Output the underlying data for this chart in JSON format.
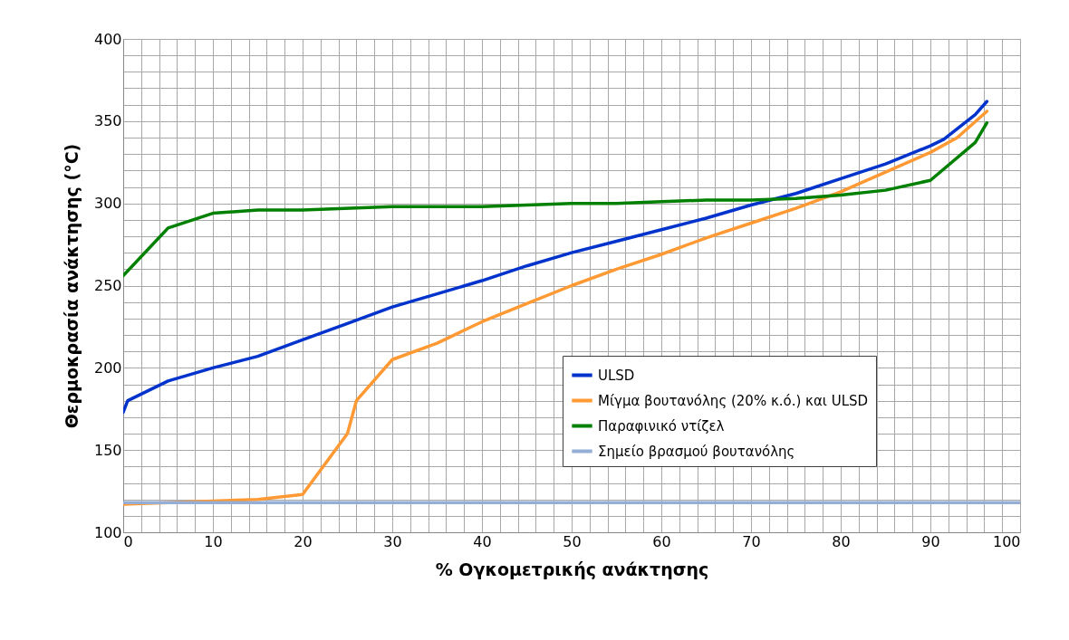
{
  "chart_data": {
    "type": "line",
    "xlabel": "% Ογκομετρικής ανάκτησης",
    "ylabel": "Θερμοκρασία ανάκτησης (°C)",
    "xlim": [
      0,
      100
    ],
    "ylim": [
      100,
      400
    ],
    "xticks": [
      0,
      {
        "value": 2,
        "label": null
      },
      {
        "value": 4,
        "label": null
      },
      {
        "value": 6,
        "label": null
      },
      {
        "value": 8,
        "label": null
      },
      10,
      {
        "value": 12,
        "label": null
      },
      {
        "value": 14,
        "label": null
      },
      {
        "value": 16,
        "label": null
      },
      {
        "value": 18,
        "label": null
      },
      20,
      {
        "value": 22,
        "label": null
      },
      {
        "value": 24,
        "label": null
      },
      {
        "value": 26,
        "label": null
      },
      {
        "value": 28,
        "label": null
      },
      30,
      {
        "value": 32,
        "label": null
      },
      {
        "value": 34,
        "label": null
      },
      {
        "value": 36,
        "label": null
      },
      {
        "value": 38,
        "label": null
      },
      40,
      {
        "value": 42,
        "label": null
      },
      {
        "value": 44,
        "label": null
      },
      {
        "value": 46,
        "label": null
      },
      {
        "value": 48,
        "label": null
      },
      50,
      {
        "value": 52,
        "label": null
      },
      {
        "value": 54,
        "label": null
      },
      {
        "value": 56,
        "label": null
      },
      {
        "value": 58,
        "label": null
      },
      60,
      {
        "value": 62,
        "label": null
      },
      {
        "value": 64,
        "label": null
      },
      {
        "value": 66,
        "label": null
      },
      {
        "value": 68,
        "label": null
      },
      70,
      {
        "value": 72,
        "label": null
      },
      {
        "value": 74,
        "label": null
      },
      {
        "value": 76,
        "label": null
      },
      {
        "value": 78,
        "label": null
      },
      80,
      {
        "value": 82,
        "label": null
      },
      {
        "value": 84,
        "label": null
      },
      {
        "value": 86,
        "label": null
      },
      {
        "value": 88,
        "label": null
      },
      90,
      {
        "value": 92,
        "label": null
      },
      {
        "value": 94,
        "label": null
      },
      {
        "value": 96,
        "label": null
      },
      {
        "value": 98,
        "label": null
      },
      100
    ],
    "yticks": [
      100,
      {
        "value": 110,
        "label": null
      },
      {
        "value": 120,
        "label": null
      },
      {
        "value": 130,
        "label": null
      },
      {
        "value": 140,
        "label": null
      },
      150,
      {
        "value": 160,
        "label": null
      },
      {
        "value": 170,
        "label": null
      },
      {
        "value": 180,
        "label": null
      },
      {
        "value": 190,
        "label": null
      },
      200,
      {
        "value": 210,
        "label": null
      },
      {
        "value": 220,
        "label": null
      },
      {
        "value": 230,
        "label": null
      },
      {
        "value": 240,
        "label": null
      },
      250,
      {
        "value": 260,
        "label": null
      },
      {
        "value": 270,
        "label": null
      },
      {
        "value": 280,
        "label": null
      },
      {
        "value": 290,
        "label": null
      },
      300,
      {
        "value": 310,
        "label": null
      },
      {
        "value": 320,
        "label": null
      },
      {
        "value": 330,
        "label": null
      },
      {
        "value": 340,
        "label": null
      },
      350,
      {
        "value": 360,
        "label": null
      },
      {
        "value": 370,
        "label": null
      },
      {
        "value": 380,
        "label": null
      },
      {
        "value": 390,
        "label": null
      },
      400
    ],
    "grid": true,
    "legend": "bottom right",
    "marker": "none",
    "line_style": "solid",
    "series": [
      {
        "name": "ULSD",
        "color": "#0033cc",
        "x": [
          0,
          0.5,
          5,
          10,
          15,
          20,
          25,
          30,
          35,
          40,
          45,
          50,
          55,
          60,
          65,
          70,
          75,
          80,
          85,
          90,
          91.5,
          95,
          96.3
        ],
        "values": [
          173,
          180,
          192,
          200,
          207,
          217,
          227,
          237,
          245,
          253,
          262,
          270,
          277,
          284,
          291,
          299,
          306,
          315,
          324,
          335,
          339,
          354,
          362
        ]
      },
      {
        "name": "Μίγμα βουτανόλης (20% κ.ό.) και ULSD",
        "color": "#ff9933",
        "x": [
          0,
          5,
          10,
          15,
          20,
          25,
          26,
          30,
          35,
          40,
          45,
          50,
          55,
          60,
          65,
          70,
          75,
          80,
          85,
          90,
          93,
          96.3
        ],
        "values": [
          117,
          null,
          119,
          120,
          123,
          160,
          180,
          205,
          215,
          228,
          239,
          250,
          260,
          269,
          279,
          288,
          297,
          307,
          319,
          331,
          340,
          356
        ]
      },
      {
        "name": "Παραφινικό ντίζελ",
        "color": "#008000",
        "x": [
          0,
          5,
          10,
          15,
          20,
          30,
          40,
          50,
          55,
          60,
          65,
          70,
          75,
          80,
          85,
          90,
          95,
          96.3
        ],
        "values": [
          256,
          285,
          294,
          296,
          296,
          298,
          298,
          300,
          300,
          301,
          302,
          302,
          303,
          305,
          308,
          314,
          337,
          349
        ]
      },
      {
        "name": "Σημείο βρασμού βουτανόλης",
        "color": "#95aed6",
        "x": [
          0,
          100
        ],
        "values": [
          118,
          118
        ]
      }
    ]
  }
}
